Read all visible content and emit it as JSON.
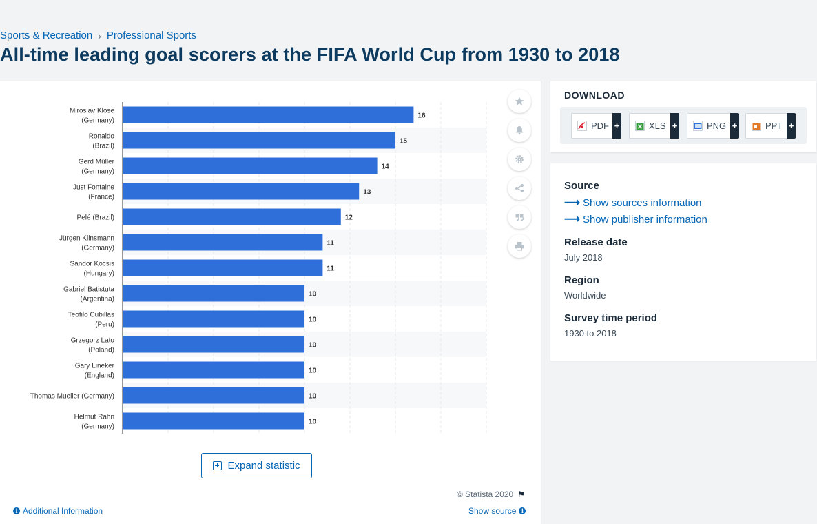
{
  "breadcrumb": {
    "item1": "Sports & Recreation",
    "separator": "›",
    "item2": "Professional Sports"
  },
  "page_title": "All-time leading goal scorers at the FIFA World Cup from 1930 to 2018",
  "toolbar": {
    "icons": [
      "star-icon",
      "bell-icon",
      "gear-icon",
      "share-icon",
      "quote-icon",
      "print-icon"
    ]
  },
  "expand_label": "Expand statistic",
  "copyright": "© Statista 2020",
  "additional_info": "Additional Information",
  "show_source": "Show source",
  "download": {
    "title": "DOWNLOAD",
    "formats": [
      "PDF",
      "XLS",
      "PNG",
      "PPT"
    ],
    "plus": "+"
  },
  "meta": {
    "source_label": "Source",
    "show_sources": "Show sources information",
    "show_publisher": "Show publisher information",
    "release_label": "Release date",
    "release_value": "July 2018",
    "region_label": "Region",
    "region_value": "Worldwide",
    "period_label": "Survey time period",
    "period_value": "1930 to 2018"
  },
  "colors": {
    "bar": "#2e6fda",
    "accent": "#0666b6",
    "title": "#0d3a5f"
  },
  "chart_data": {
    "type": "bar",
    "orientation": "horizontal",
    "categories": [
      [
        "Miroslav Klose",
        "(Germany)"
      ],
      [
        "Ronaldo",
        "(Brazil)"
      ],
      [
        "Gerd Müller",
        "(Germany)"
      ],
      [
        "Just Fontaine",
        "(France)"
      ],
      [
        "Pelé (Brazil)"
      ],
      [
        "Jürgen Klinsmann",
        "(Germany)"
      ],
      [
        "Sandor Kocsis",
        "(Hungary)"
      ],
      [
        "Gabriel Batistuta",
        "(Argentina)"
      ],
      [
        "Teofilo Cubillas",
        "(Peru)"
      ],
      [
        "Grzegorz Lato",
        "(Poland)"
      ],
      [
        "Gary Lineker",
        "(England)"
      ],
      [
        "Thomas Mueller (Germany)"
      ],
      [
        "Helmut Rahn",
        "(Germany)"
      ]
    ],
    "values": [
      16,
      15,
      14,
      13,
      12,
      11,
      11,
      10,
      10,
      10,
      10,
      10,
      10
    ],
    "xlim": [
      0,
      20
    ],
    "grid": true,
    "data_labels": true
  }
}
